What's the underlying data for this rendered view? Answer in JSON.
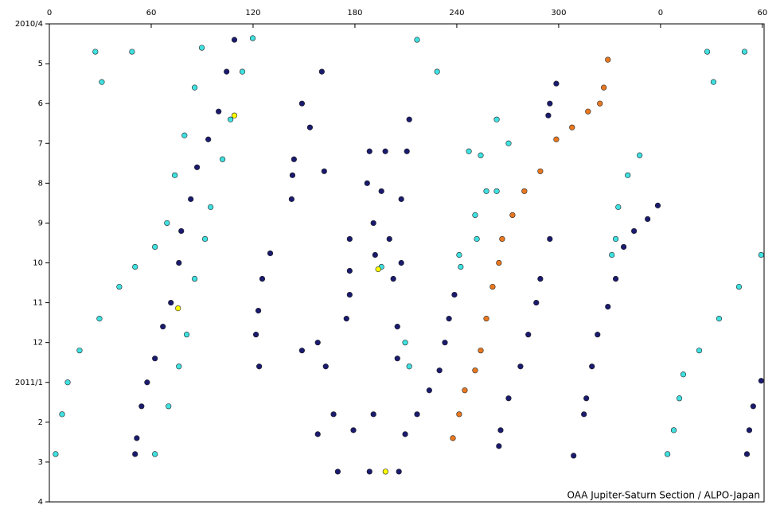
{
  "chart_data": {
    "type": "scatter",
    "footer": "OAA Jupiter-Saturn Section / ALPO-Japan",
    "xlim": [
      0,
      421
    ],
    "xticks": [
      0,
      60,
      120,
      180,
      240,
      300,
      {
        "value": 360,
        "label": "0"
      },
      {
        "value": 420,
        "label": "60"
      }
    ],
    "ylim": [
      0,
      12
    ],
    "invert_y": true,
    "yticks": [
      {
        "value": 0,
        "label": "2010/4"
      },
      {
        "value": 1,
        "label": "5"
      },
      {
        "value": 2,
        "label": "6"
      },
      {
        "value": 3,
        "label": "7"
      },
      {
        "value": 4,
        "label": "8"
      },
      {
        "value": 5,
        "label": "9"
      },
      {
        "value": 6,
        "label": "10"
      },
      {
        "value": 7,
        "label": "11"
      },
      {
        "value": 8,
        "label": "12"
      },
      {
        "value": 9,
        "label": "2011/1"
      },
      {
        "value": 10,
        "label": "2"
      },
      {
        "value": 11,
        "label": "3"
      },
      {
        "value": 12,
        "label": "4"
      }
    ],
    "series": [
      {
        "color": "#1a1a6e",
        "x": [
          109,
          104.4,
          99.7,
          93.6,
          87,
          83.3,
          77.7,
          76.3,
          71.6,
          66.9,
          62.2,
          57.6,
          54.3,
          51.5,
          50.5,
          130.1,
          125.4,
          123.1,
          121.7,
          123.6,
          144.1,
          143.2,
          142.7,
          148.8,
          153.5,
          160.5,
          161.9,
          176.9,
          176.9,
          176.9,
          175,
          188.6,
          187.2,
          190.9,
          191.9,
          197.9,
          195.6,
          200.3,
          202.6,
          205,
          205,
          210.6,
          207.3,
          207.3,
          212,
          238.6,
          235.4,
          233,
          229.8,
          223.8,
          216.6,
          209.6,
          294.8,
          289.2,
          286.8,
          282.1,
          277.5,
          270.5,
          265.8,
          264.8,
          329,
          322.9,
          319.6,
          316.3,
          314.9,
          308.8,
          358.4,
          352.4,
          344.4,
          338.3,
          333.6,
          298.6,
          294.8,
          293.9,
          419.3,
          414.6,
          412.3,
          410.9,
          148.8,
          158.1,
          162.8,
          167.4,
          179.1,
          190.9,
          158.1,
          169.9,
          188.6,
          205.9
        ],
        "values": [
          0.4,
          1.2,
          2.2,
          2.9,
          3.6,
          4.4,
          5.2,
          6.0,
          7.0,
          7.6,
          8.4,
          9.0,
          9.6,
          10.4,
          10.8,
          5.76,
          6.4,
          7.2,
          7.8,
          8.6,
          3.4,
          3.8,
          4.4,
          2.0,
          2.6,
          1.2,
          3.7,
          5.4,
          6.2,
          6.8,
          7.4,
          3.2,
          4.0,
          5.0,
          5.8,
          3.2,
          4.2,
          5.4,
          6.4,
          7.6,
          8.4,
          3.2,
          4.4,
          6.0,
          2.4,
          6.8,
          7.4,
          8.0,
          8.7,
          9.2,
          9.8,
          10.3,
          5.4,
          6.4,
          7.0,
          7.8,
          8.6,
          9.4,
          10.2,
          10.6,
          7.1,
          7.8,
          8.6,
          9.4,
          9.8,
          10.84,
          4.56,
          4.9,
          5.2,
          5.6,
          6.4,
          1.5,
          2.0,
          2.3,
          8.96,
          9.6,
          10.2,
          10.8,
          8.2,
          8.0,
          8.6,
          9.8,
          10.2,
          9.8,
          10.3,
          11.24,
          11.24,
          11.24
        ]
      },
      {
        "color": "#40e0e0",
        "x": [
          89.8,
          85.6,
          79.6,
          73.9,
          69.3,
          62.2,
          50.5,
          41.2,
          29.5,
          17.8,
          10.8,
          7.5,
          3.7,
          119.8,
          113.7,
          106.7,
          102,
          95,
          91.7,
          85.6,
          80.9,
          76.3,
          70.2,
          62.2,
          419.3,
          406.2,
          394.5,
          382.8,
          373.4,
          371.1,
          367.8,
          364.1,
          27.1,
          30.9,
          48.7,
          387.5,
          391.2,
          409.5,
          257.4,
          250.8,
          241.4,
          242.3,
          251.8,
          263.5,
          270.5,
          263.5,
          247.1,
          254.1,
          347.7,
          340.7,
          335.1,
          333.6,
          331.3,
          209.6,
          212,
          195.6,
          216.6,
          228.4
        ],
        "values": [
          0.6,
          1.6,
          2.8,
          3.8,
          5.0,
          5.6,
          6.1,
          6.6,
          7.4,
          8.2,
          9.0,
          9.8,
          10.8,
          0.36,
          1.2,
          2.4,
          3.4,
          4.6,
          5.4,
          6.4,
          7.8,
          8.6,
          9.6,
          10.8,
          5.8,
          6.6,
          7.4,
          8.2,
          8.8,
          9.4,
          10.2,
          10.8,
          0.7,
          1.46,
          0.7,
          0.7,
          1.46,
          0.7,
          4.2,
          4.8,
          5.8,
          6.1,
          5.4,
          4.2,
          3.0,
          2.4,
          3.2,
          3.3,
          3.3,
          3.8,
          4.6,
          5.4,
          5.8,
          8.0,
          8.6,
          6.1,
          0.4,
          1.2
        ]
      },
      {
        "color": "#e87820",
        "x": [
          329,
          326.6,
          324.3,
          317.3,
          307.9,
          298.6,
          289.2,
          279.8,
          272.8,
          266.7,
          264.8,
          261.1,
          257.4,
          254.1,
          250.8,
          244.7,
          241.4,
          237.7
        ],
        "values": [
          0.9,
          1.6,
          2.0,
          2.2,
          2.6,
          2.9,
          3.7,
          4.2,
          4.8,
          5.4,
          6.0,
          6.6,
          7.4,
          8.2,
          8.7,
          9.2,
          9.8,
          10.4
        ]
      },
      {
        "color": "#ffff00",
        "x": [
          109,
          75.8,
          193.7,
          198
        ],
        "values": [
          2.3,
          7.14,
          6.16,
          11.24
        ]
      }
    ]
  }
}
